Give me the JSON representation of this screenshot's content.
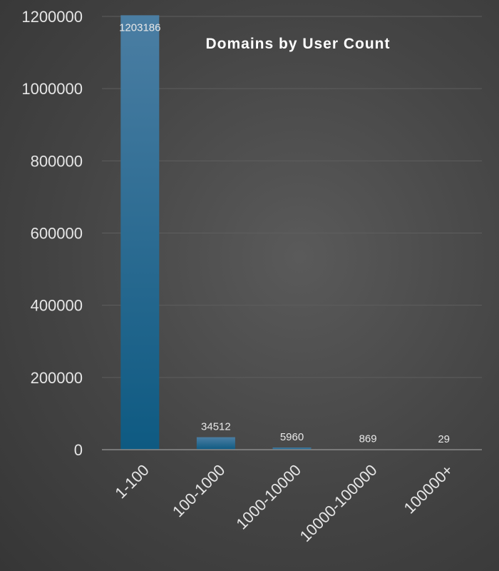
{
  "chart_data": {
    "type": "bar",
    "title": "Domains by User Count",
    "categories": [
      "1-100",
      "100-1000",
      "1000-10000",
      "10000-100000",
      "100000+"
    ],
    "values": [
      1203186,
      34512,
      5960,
      869,
      29
    ],
    "data_labels": [
      "1203186",
      "34512",
      "5960",
      "869",
      "29"
    ],
    "yticks": [
      0,
      200000,
      400000,
      600000,
      800000,
      1000000,
      1200000
    ],
    "ytick_labels": [
      "0",
      "200000",
      "400000",
      "600000",
      "800000",
      "1000000",
      "1200000"
    ],
    "ylim": [
      0,
      1200000
    ],
    "grid": true,
    "legend": "none",
    "colors": {
      "bar_top": "#4b7ea3",
      "bar_bottom": "#0e5a82",
      "grid": "#5e5e5e",
      "axis": "#8a8a8a"
    }
  }
}
